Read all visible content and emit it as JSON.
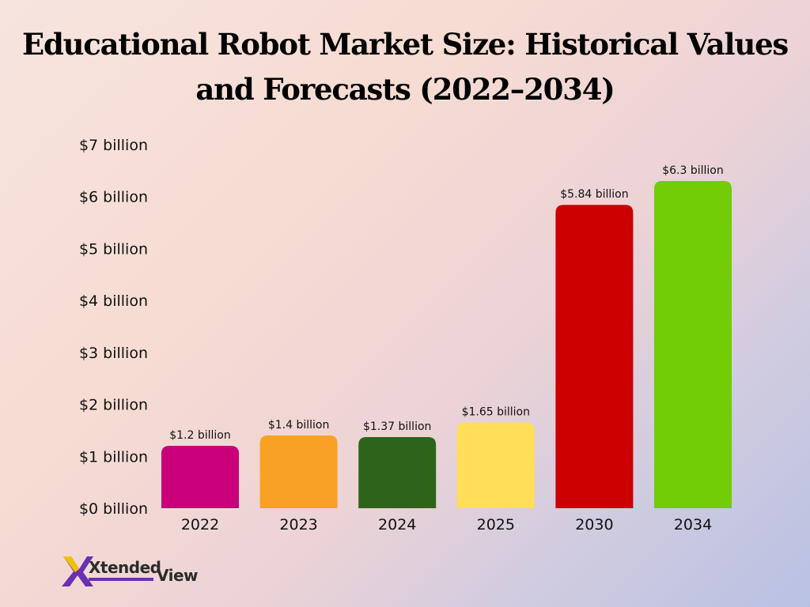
{
  "chart_data": {
    "type": "bar",
    "title_lines": [
      "Educational Robot Market Size: Historical Values",
      "and Forecasts (2022–2034)"
    ],
    "categories": [
      "2022",
      "2023",
      "2024",
      "2025",
      "2030",
      "2034"
    ],
    "values": [
      1.2,
      1.4,
      1.37,
      1.65,
      5.84,
      6.3
    ],
    "data_labels": [
      "$1.2 billion",
      "$1.4 billion",
      "$1.37 billion",
      "$1.65 billion",
      "$5.84 billion",
      "$6.3 billion"
    ],
    "bar_colors": [
      "#c9007a",
      "#f9a125",
      "#2e6419",
      "#ffde59",
      "#cc0000",
      "#72cc06"
    ],
    "y_ticks": [
      0,
      1,
      2,
      3,
      4,
      5,
      6,
      7
    ],
    "y_tick_labels": [
      "$0 billion",
      "$1 billion",
      "$2 billion",
      "$3 billion",
      "$4 billion",
      "$5 billion",
      "$6 billion",
      "$7 billion"
    ],
    "ylim": [
      0,
      7
    ],
    "grid": false,
    "legend": "none"
  },
  "brand": {
    "logo_part1": "Xtended",
    "logo_part2": "View",
    "accent_color": "#6b2fb3"
  }
}
